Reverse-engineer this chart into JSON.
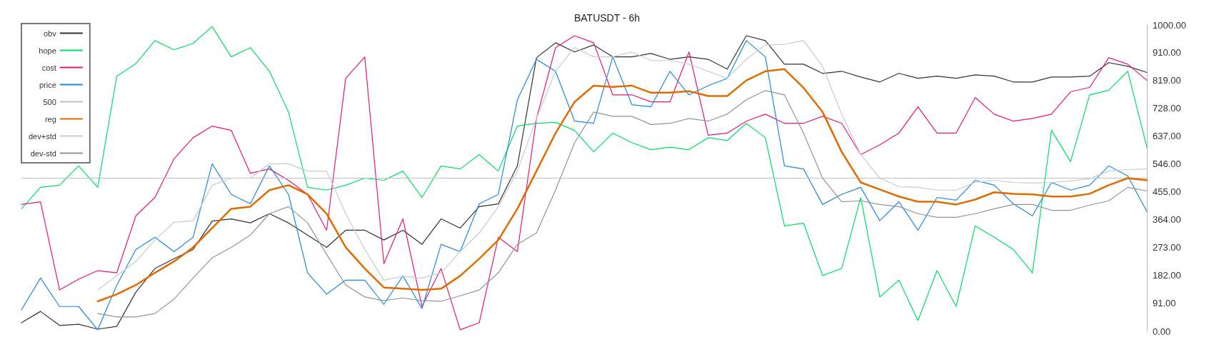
{
  "chart_data": {
    "type": "line",
    "title": "BATUSDT - 6h",
    "categories": [
      null,
      null,
      null,
      null,
      null,
      null,
      null,
      null,
      null,
      null,
      null,
      null,
      null,
      null,
      null,
      null,
      null,
      null,
      null,
      null,
      null,
      null,
      null,
      null,
      null,
      null,
      null,
      null,
      null,
      null,
      null,
      null,
      null,
      null,
      null,
      null,
      null,
      null,
      null,
      null,
      null,
      null,
      null,
      null,
      null,
      null,
      null,
      null,
      null,
      null,
      null,
      null,
      null,
      null,
      null,
      null,
      null,
      null,
      null,
      null
    ],
    "ylim": [
      0,
      1000
    ],
    "yticks": [
      {
        "value": 0,
        "label": "0.00"
      },
      {
        "value": 91,
        "label": "91.00"
      },
      {
        "value": 182,
        "label": "182.00"
      },
      {
        "value": 273,
        "label": "273.00"
      },
      {
        "value": 364,
        "label": "364.00"
      },
      {
        "value": 455,
        "label": "455.00"
      },
      {
        "value": 546,
        "label": "546.00"
      },
      {
        "value": 637,
        "label": "637.00"
      },
      {
        "value": 728,
        "label": "728.00"
      },
      {
        "value": 819,
        "label": "819.00"
      },
      {
        "value": 910,
        "label": "910.00"
      },
      {
        "value": 1000,
        "label": "1000.00"
      }
    ],
    "grid": false,
    "legend": "top left",
    "tick_labels": "y",
    "marker": "none",
    "line_style": "solid",
    "series": [
      {
        "name": "obv",
        "color": "#333333",
        "values": [
          28,
          65,
          19,
          23,
          7,
          16,
          128,
          205,
          237,
          267,
          360,
          367,
          354,
          384,
          354,
          314,
          274,
          330,
          330,
          298,
          330,
          284,
          367,
          337,
          407,
          416,
          540,
          893,
          942,
          912,
          935,
          896,
          896,
          907,
          888,
          896,
          888,
          856,
          965,
          949,
          872,
          872,
          842,
          849,
          830,
          814,
          842,
          826,
          833,
          826,
          837,
          833,
          814,
          814,
          830,
          830,
          833,
          877,
          865,
          845
        ]
      },
      {
        "name": "hope",
        "color": "#00e065",
        "values": [
          400,
          470,
          477,
          540,
          470,
          833,
          874,
          949,
          919,
          940,
          995,
          896,
          926,
          849,
          716,
          470,
          461,
          477,
          500,
          493,
          523,
          437,
          540,
          530,
          577,
          523,
          670,
          679,
          682,
          656,
          586,
          647,
          616,
          593,
          601,
          593,
          632,
          623,
          679,
          632,
          344,
          353,
          182,
          205,
          437,
          112,
          167,
          35,
          198,
          81,
          344,
          307,
          267,
          191,
          656,
          554,
          772,
          787,
          849,
          601
        ]
      },
      {
        "name": "cost",
        "color": "#e6177a",
        "values": [
          414,
          423,
          135,
          170,
          198,
          191,
          377,
          437,
          563,
          632,
          670,
          656,
          516,
          530,
          493,
          447,
          330,
          826,
          896,
          221,
          367,
          81,
          205,
          5,
          28,
          307,
          260,
          695,
          926,
          965,
          942,
          772,
          772,
          749,
          749,
          912,
          640,
          647,
          686,
          709,
          679,
          679,
          702,
          679,
          577,
          609,
          647,
          733,
          647,
          647,
          763,
          709,
          686,
          695,
          709,
          782,
          796,
          893,
          872,
          819
        ]
      },
      {
        "name": "price",
        "color": "#1e88e5",
        "values": [
          70,
          174,
          81,
          81,
          5,
          151,
          267,
          307,
          260,
          307,
          547,
          447,
          416,
          540,
          447,
          191,
          121,
          167,
          167,
          88,
          181,
          74,
          284,
          260,
          416,
          447,
          756,
          888,
          849,
          686,
          679,
          896,
          740,
          733,
          849,
          772,
          802,
          826,
          949,
          896,
          540,
          530,
          414,
          447,
          470,
          361,
          423,
          330,
          437,
          428,
          493,
          477,
          416,
          377,
          486,
          461,
          477,
          540,
          507,
          391
        ]
      },
      {
        "name": "500",
        "color": "#c0c0c0",
        "values": [
          500,
          500,
          500,
          500,
          500,
          500,
          500,
          500,
          500,
          500,
          500,
          500,
          500,
          500,
          500,
          500,
          500,
          500,
          500,
          500,
          500,
          500,
          500,
          500,
          500,
          500,
          500,
          500,
          500,
          500,
          500,
          500,
          500,
          500,
          500,
          500,
          500,
          500,
          500,
          500,
          500,
          500,
          500,
          500,
          500,
          500,
          500,
          500,
          500,
          500,
          500,
          500,
          500,
          500,
          500,
          500,
          500,
          500,
          500,
          500
        ]
      },
      {
        "name": "reg",
        "color": "#e06c00",
        "values": [
          null,
          null,
          null,
          null,
          98,
          121,
          151,
          191,
          228,
          274,
          337,
          400,
          407,
          461,
          477,
          447,
          384,
          274,
          205,
          143,
          139,
          135,
          139,
          181,
          237,
          298,
          400,
          523,
          647,
          749,
          802,
          798,
          802,
          779,
          779,
          784,
          768,
          768,
          819,
          849,
          856,
          795,
          716,
          586,
          486,
          463,
          440,
          423,
          423,
          414,
          430,
          454,
          449,
          447,
          440,
          440,
          449,
          477,
          500,
          493
        ]
      },
      {
        "name": "dev+std",
        "color": "#c5ccd0",
        "values": [
          null,
          null,
          null,
          null,
          135,
          181,
          228,
          298,
          356,
          361,
          477,
          500,
          500,
          547,
          547,
          523,
          523,
          384,
          267,
          167,
          179,
          174,
          191,
          260,
          321,
          407,
          523,
          695,
          849,
          926,
          896,
          896,
          912,
          884,
          884,
          872,
          849,
          826,
          888,
          935,
          937,
          949,
          865,
          709,
          577,
          500,
          472,
          470,
          461,
          461,
          486,
          493,
          486,
          484,
          486,
          491,
          498,
          523,
          528,
          530
        ]
      },
      {
        "name": "dev-std",
        "color": "#8c979d",
        "values": [
          null,
          null,
          null,
          null,
          58,
          47,
          47,
          58,
          105,
          174,
          240,
          274,
          314,
          384,
          407,
          354,
          251,
          151,
          112,
          100,
          109,
          100,
          98,
          116,
          135,
          191,
          284,
          321,
          461,
          616,
          716,
          702,
          702,
          675,
          679,
          695,
          686,
          709,
          756,
          786,
          772,
          647,
          500,
          423,
          426,
          414,
          407,
          384,
          372,
          372,
          384,
          400,
          414,
          414,
          395,
          395,
          412,
          426,
          470,
          458
        ]
      }
    ]
  }
}
